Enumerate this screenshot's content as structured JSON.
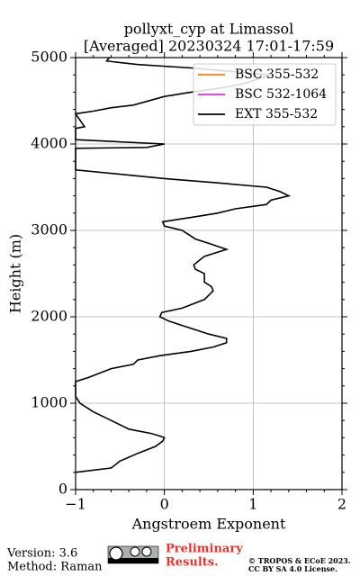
{
  "chart_data": {
    "type": "line",
    "title": [
      "pollyxt_cyp at Limassol",
      "[Averaged] 20230324 17:01-17:59"
    ],
    "xlabel": "Angstroem Exponent",
    "ylabel": "Height (m)",
    "xlim": [
      -1,
      2
    ],
    "ylim": [
      0,
      5000
    ],
    "xticks": [
      {
        "value": -1,
        "label": "−1"
      },
      0,
      1,
      2
    ],
    "yticks": [
      0,
      1000,
      2000,
      3000,
      4000,
      5000
    ],
    "xminorticks": [
      -0.8,
      -0.6,
      -0.4,
      -0.2,
      0.2,
      0.4,
      0.6,
      0.8,
      1.2,
      1.4,
      1.6,
      1.8
    ],
    "yminorticks": [
      200,
      400,
      600,
      800,
      1200,
      1400,
      1600,
      1800,
      2200,
      2400,
      2600,
      2800,
      3200,
      3400,
      3600,
      3800,
      4200,
      4400,
      4600,
      4800
    ],
    "grid": true,
    "legend": "upper right",
    "series": [
      {
        "name": "BSC 355-532",
        "color": "#ff7f0e",
        "x": [],
        "y": []
      },
      {
        "name": "BSC 532-1064",
        "color": "#e02ee0",
        "x": [],
        "y": []
      },
      {
        "name": "EXT 355-532",
        "color": "#000000",
        "x": [
          -1.0,
          -0.6,
          -0.5,
          -0.3,
          -0.1,
          -0.02,
          0.0,
          -0.05,
          -0.15,
          -0.4,
          -0.6,
          -0.8,
          -0.95,
          -1.0,
          -1.0,
          -0.85,
          -0.6,
          -0.35,
          -0.3,
          -0.05,
          0.3,
          0.55,
          0.7,
          0.7,
          0.5,
          0.2,
          0.05,
          -0.05,
          -0.03,
          0.2,
          0.45,
          0.55,
          0.53,
          0.45,
          0.45,
          0.35,
          0.33,
          0.45,
          0.7,
          0.5,
          0.35,
          0.2,
          0.0,
          -0.02,
          0.3,
          0.6,
          0.8,
          1.15,
          1.2,
          1.4,
          1.3,
          1.15,
          0.6,
          0.0,
          -0.5,
          -1.0,
          -1.0,
          -0.2,
          0.0,
          -1.0,
          -1.0,
          -0.9,
          -1.0,
          -0.8,
          -0.6,
          -0.35,
          0.0,
          0.3,
          0.65,
          0.9,
          1.2,
          0.3,
          -0.3,
          -0.65,
          -0.62
        ],
        "y": [
          200,
          250,
          330,
          420,
          500,
          560,
          600,
          620,
          650,
          700,
          800,
          900,
          1000,
          1080,
          1250,
          1300,
          1400,
          1450,
          1500,
          1550,
          1600,
          1650,
          1700,
          1750,
          1800,
          1900,
          1950,
          2000,
          2050,
          2100,
          2200,
          2300,
          2350,
          2400,
          2500,
          2550,
          2600,
          2700,
          2780,
          2850,
          2900,
          3000,
          3050,
          3100,
          3150,
          3200,
          3250,
          3300,
          3350,
          3400,
          3450,
          3500,
          3550,
          3600,
          3650,
          3700,
          3950,
          3960,
          4000,
          4050,
          4180,
          4200,
          4350,
          4380,
          4420,
          4450,
          4550,
          4600,
          4650,
          4700,
          4800,
          4880,
          4920,
          4960,
          5000
        ]
      }
    ]
  },
  "footer": {
    "version": "Version: 3.6",
    "method": "Method: Raman",
    "preliminary": [
      "Preliminary",
      "Results."
    ],
    "copyright": [
      "© TROPOS & ECoE 2023.",
      "CC BY SA 4.0 License."
    ]
  }
}
